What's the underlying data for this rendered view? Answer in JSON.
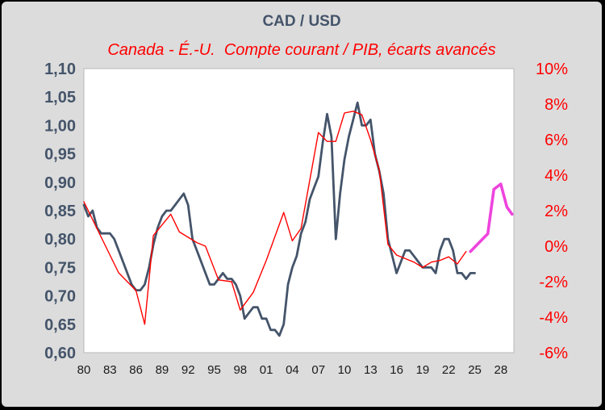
{
  "chart_data": {
    "type": "line",
    "title": "CAD / USD",
    "subtitle": "Canada - É.-U.  Compte courant / PIB, écarts avancés",
    "x_tick_labels": [
      "80",
      "83",
      "86",
      "89",
      "92",
      "95",
      "98",
      "01",
      "04",
      "07",
      "10",
      "13",
      "16",
      "19",
      "22",
      "25",
      "28"
    ],
    "x_range": [
      1980,
      2029.5
    ],
    "left_axis": {
      "range": [
        0.6,
        1.1
      ],
      "tick_labels": [
        "1,10",
        "1,05",
        "1,00",
        "0,95",
        "0,90",
        "0,85",
        "0,80",
        "0,75",
        "0,70",
        "0,65",
        "0,60"
      ]
    },
    "right_axis": {
      "range": [
        -6,
        10
      ],
      "tick_labels": [
        "10%",
        "8%",
        "6%",
        "4%",
        "2%",
        "0%",
        "-2%",
        "-4%",
        "-6%"
      ]
    },
    "series": [
      {
        "axis": "left",
        "color": "#44546a",
        "x": [
          1980,
          1980.5,
          1981,
          1981.5,
          1982,
          1982.5,
          1983,
          1983.5,
          1984,
          1984.5,
          1985,
          1985.5,
          1986,
          1986.5,
          1987,
          1987.5,
          1988,
          1988.5,
          1989,
          1989.5,
          1990,
          1990.5,
          1991,
          1991.5,
          1992,
          1992.5,
          1993,
          1993.5,
          1994,
          1994.5,
          1995,
          1995.5,
          1996,
          1996.5,
          1997,
          1997.5,
          1998,
          1998.5,
          1999,
          1999.5,
          2000,
          2000.5,
          2001,
          2001.5,
          2002,
          2002.5,
          2003,
          2003.5,
          2004,
          2004.5,
          2005,
          2005.5,
          2006,
          2006.5,
          2007,
          2007.5,
          2008,
          2008.5,
          2009,
          2009.5,
          2010,
          2010.5,
          2011,
          2011.5,
          2012,
          2012.5,
          2013,
          2013.5,
          2014,
          2014.5,
          2015,
          2015.5,
          2016,
          2016.5,
          2017,
          2017.5,
          2018,
          2018.5,
          2019,
          2019.5,
          2020,
          2020.5,
          2021,
          2021.5,
          2022,
          2022.5,
          2023,
          2023.5,
          2024,
          2024.5,
          2025
        ],
        "y": [
          0.86,
          0.84,
          0.85,
          0.82,
          0.81,
          0.81,
          0.81,
          0.8,
          0.78,
          0.76,
          0.74,
          0.72,
          0.71,
          0.71,
          0.72,
          0.75,
          0.79,
          0.82,
          0.84,
          0.85,
          0.85,
          0.86,
          0.87,
          0.88,
          0.86,
          0.8,
          0.78,
          0.76,
          0.74,
          0.72,
          0.72,
          0.73,
          0.74,
          0.73,
          0.73,
          0.72,
          0.7,
          0.66,
          0.67,
          0.68,
          0.68,
          0.66,
          0.66,
          0.64,
          0.64,
          0.63,
          0.65,
          0.72,
          0.75,
          0.77,
          0.81,
          0.83,
          0.87,
          0.89,
          0.91,
          0.97,
          1.02,
          0.98,
          0.8,
          0.88,
          0.94,
          0.98,
          1.01,
          1.04,
          1.0,
          1.0,
          1.01,
          0.95,
          0.92,
          0.88,
          0.8,
          0.77,
          0.74,
          0.76,
          0.78,
          0.78,
          0.77,
          0.76,
          0.75,
          0.75,
          0.75,
          0.74,
          0.78,
          0.8,
          0.8,
          0.78,
          0.74,
          0.74,
          0.73,
          0.74,
          0.74
        ]
      },
      {
        "axis": "right",
        "color": "#ff0000",
        "x": [
          1980,
          1982,
          1984,
          1986,
          1987,
          1988,
          1990,
          1991,
          1993,
          1994,
          1995.5,
          1997,
          1998,
          1999.5,
          2001,
          2003,
          2004,
          2005,
          2007,
          2008,
          2009,
          2010,
          2011,
          2012,
          2013,
          2014,
          2015,
          2016,
          2017,
          2018,
          2019,
          2020,
          2021,
          2022,
          2023,
          2024
        ],
        "y": [
          2.5,
          0.5,
          -1.5,
          -2.5,
          -4.4,
          0.6,
          1.8,
          0.8,
          0.2,
          0.0,
          -1.9,
          -2.0,
          -3.6,
          -2.6,
          -0.8,
          1.9,
          0.3,
          1.0,
          6.4,
          5.9,
          5.9,
          7.5,
          7.6,
          7.4,
          6.0,
          4.3,
          0.1,
          -0.5,
          -0.7,
          -0.9,
          -1.2,
          -0.9,
          -0.8,
          -0.6,
          -1.0,
          -0.3
        ]
      },
      {
        "axis": "right",
        "color": "#ee44dd",
        "x": [
          2024.5,
          2025.5,
          2026.5,
          2027.2,
          2028,
          2028.7,
          2029.3
        ],
        "y": [
          -0.3,
          0.2,
          0.7,
          3.2,
          3.5,
          2.2,
          1.8
        ]
      }
    ]
  }
}
